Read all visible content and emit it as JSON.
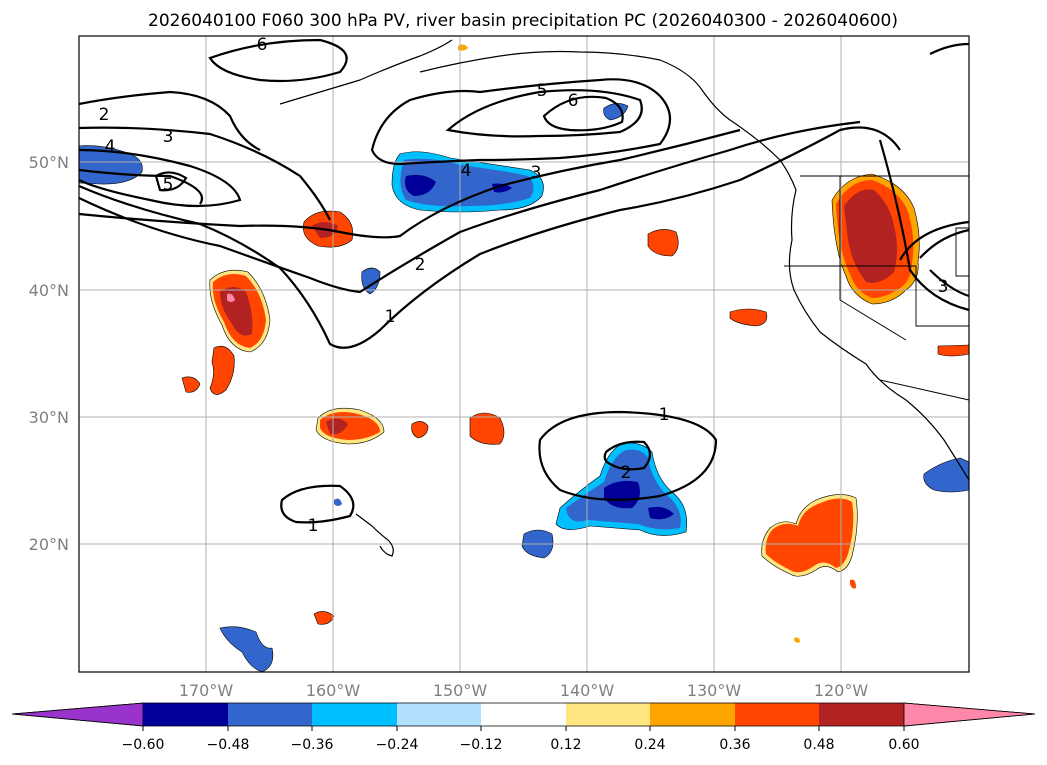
{
  "title": "2026040100 F060 300 hPa PV, river basin precipitation PC (2026040300 - 2026040600)",
  "lat_labels": [
    "50°N",
    "40°N",
    "30°N",
    "20°N"
  ],
  "lon_labels": [
    "170°W",
    "160°W",
    "150°W",
    "140°W",
    "130°W",
    "120°W"
  ],
  "contour_labels": [
    "6",
    "2",
    "3",
    "4",
    "5",
    "5",
    "6",
    "4",
    "3",
    "2",
    "1",
    "1",
    "2",
    "1",
    "3"
  ],
  "colorbar": {
    "ticks": [
      "−0.60",
      "−0.48",
      "−0.36",
      "−0.24",
      "−0.12",
      "0.12",
      "0.24",
      "0.36",
      "0.48",
      "0.60"
    ],
    "colors": [
      "#9933cc",
      "#000099",
      "#3366cc",
      "#00bfff",
      "#b3e0ff",
      "#ffffff",
      "#ffe680",
      "#ffa500",
      "#ff4500",
      "#b22222",
      "#ff88aa"
    ]
  }
}
